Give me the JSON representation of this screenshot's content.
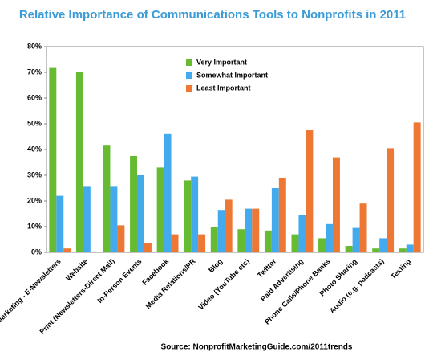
{
  "chart_data": {
    "type": "bar",
    "title": "Relative Importance of Communications Tools to Nonprofits in 2011",
    "source": "Source: NonprofitMarketingGuide.com/2011trends",
    "categories": [
      "Email Marketing - E-Newsletters",
      "Website",
      "Print (Newsletters-Direct Mail)",
      "In-Person Events",
      "Facebook",
      "Media Relations/PR",
      "Blog",
      "Video (YouTube etc)",
      "Twitter",
      "Paid Advertising",
      "Phone Calls/Phone Banks",
      "Photo Sharing",
      "Audio (e.g. podcasts)",
      "Texting"
    ],
    "series": [
      {
        "name": "Very Important",
        "color": "#66bb33",
        "values": [
          72,
          70,
          41.5,
          37.5,
          33,
          28,
          10,
          9,
          8.5,
          7,
          5.5,
          2.5,
          1.5,
          1.5
        ]
      },
      {
        "name": "Somewhat Important",
        "color": "#44aaee",
        "values": [
          22,
          25.5,
          25.5,
          30,
          46,
          29.5,
          16.5,
          17,
          25,
          14.5,
          11,
          9.5,
          5.5,
          3
        ]
      },
      {
        "name": "Least Important",
        "color": "#ee7733",
        "values": [
          1.5,
          0,
          10.5,
          3.5,
          7,
          7,
          20.5,
          17,
          29,
          47.5,
          37,
          19,
          40.5,
          50.5
        ]
      }
    ],
    "ylim": [
      0,
      80
    ],
    "yticks": [
      {
        "value": 0,
        "label": "0%"
      },
      {
        "value": 10,
        "label": "10%"
      },
      {
        "value": 20,
        "label": "20%"
      },
      {
        "value": 30,
        "label": "30%"
      },
      {
        "value": 40,
        "label": "40%"
      },
      {
        "value": 50,
        "label": "50%"
      },
      {
        "value": 60,
        "label": "60%"
      },
      {
        "value": 70,
        "label": "70%"
      },
      {
        "value": 80,
        "label": "80%"
      }
    ],
    "grid": false,
    "legend": "top"
  }
}
